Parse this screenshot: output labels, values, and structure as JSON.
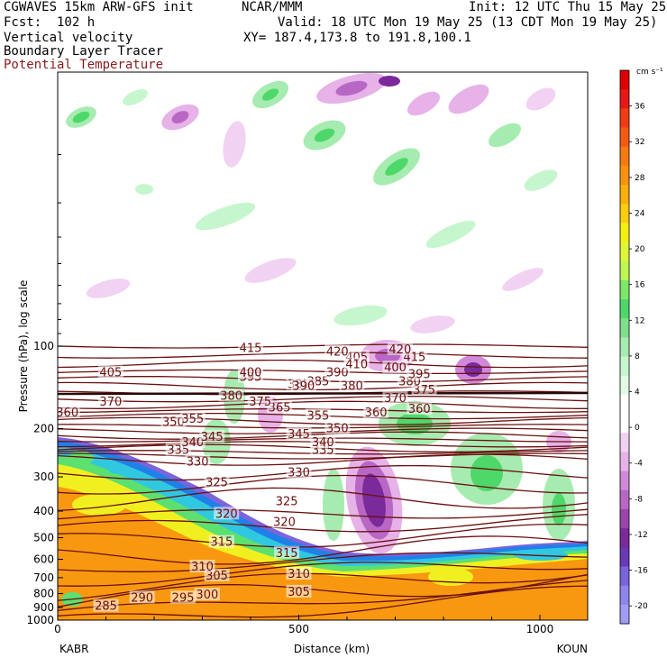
{
  "header": {
    "model": "CGWAVES 15km ARW-GFS init",
    "forecast": "Fcst:  102 h",
    "org": "NCAR/MMM",
    "init": "Init: 12 UTC Thu 15 May 25",
    "valid": "Valid: 18 UTC Mon 19 May 25 (13 CDT Mon 19 May 25)",
    "xy": "XY= 187.4,173.8 to 191.8,100.1",
    "field1": "Vertical velocity",
    "field2": "Boundary Layer Tracer",
    "field3": "Potential Temperature"
  },
  "colors": {
    "theta_line": "#6b1010",
    "field3_text": "#8b1a1a"
  },
  "chart_data": {
    "type": "heatmap",
    "title": "",
    "xlabel": "Distance (km)",
    "ylabel": "Pressure (hPa), log scale",
    "x_ticks": [
      "0",
      "500",
      "1000"
    ],
    "x_tick_values": [
      0,
      500,
      1000
    ],
    "xlim": [
      0,
      1100
    ],
    "x_endpoints": {
      "left": "KABR",
      "right": "KOUN"
    },
    "y_ticks": [
      "100",
      "200",
      "300",
      "400",
      "500",
      "600",
      "700",
      "800",
      "900",
      "1000"
    ],
    "y_tick_values": [
      100,
      200,
      300,
      400,
      500,
      600,
      700,
      800,
      900,
      1000
    ],
    "y_scale": "log",
    "colorbar": {
      "units": "cm s⁻¹",
      "labels": [
        "36",
        "32",
        "28",
        "24",
        "20",
        "16",
        "12",
        "8",
        "4",
        "0",
        "-4",
        "-8",
        "-12",
        "-16",
        "-20"
      ],
      "label_values": [
        36,
        32,
        28,
        24,
        20,
        16,
        12,
        8,
        4,
        0,
        -4,
        -8,
        -12,
        -16,
        -20
      ],
      "bands": [
        "#e00000",
        "#e81818",
        "#f03c14",
        "#f55a14",
        "#f77a10",
        "#f9920e",
        "#fbae0c",
        "#fccc10",
        "#f5ef10",
        "#e0f53a",
        "#bff552",
        "#7be86a",
        "#4fd86a",
        "#7ee08c",
        "#a6ecb0",
        "#c6f6ce",
        "#e2fbe6",
        "#ffffff",
        "#ffffff",
        "#f2d2f2",
        "#e6b2e8",
        "#d288d8",
        "#b868c4",
        "#9a44ac",
        "#7a2a9a",
        "#6a3ab4",
        "#7a64dc",
        "#8e84ec",
        "#a09cf4"
      ]
    },
    "theta_contours": [
      {
        "label": "285",
        "p": 890
      },
      {
        "label": "290",
        "p": 830
      },
      {
        "label": "295",
        "p": 830
      },
      {
        "label": "300",
        "p": 810
      },
      {
        "label": "305",
        "p": 690
      },
      {
        "label": "305",
        "p": 790
      },
      {
        "label": "310",
        "p": 640
      },
      {
        "label": "310",
        "p": 680
      },
      {
        "label": "315",
        "p": 520
      },
      {
        "label": "315",
        "p": 570
      },
      {
        "label": "320",
        "p": 410
      },
      {
        "label": "320",
        "p": 440
      },
      {
        "label": "325",
        "p": 315
      },
      {
        "label": "325",
        "p": 370
      },
      {
        "label": "330",
        "p": 265
      },
      {
        "label": "330",
        "p": 290
      },
      {
        "label": "335",
        "p": 240
      },
      {
        "label": "335",
        "p": 240
      },
      {
        "label": "340",
        "p": 225
      },
      {
        "label": "340",
        "p": 225
      },
      {
        "label": "345",
        "p": 215
      },
      {
        "label": "345",
        "p": 210
      },
      {
        "label": "350",
        "p": 200
      },
      {
        "label": "350",
        "p": 190
      },
      {
        "label": "355",
        "p": 185
      },
      {
        "label": "355",
        "p": 180
      },
      {
        "label": "360",
        "p": 175
      },
      {
        "label": "360",
        "p": 175
      },
      {
        "label": "360",
        "p": 170
      },
      {
        "label": "365",
        "p": 168
      },
      {
        "label": "370",
        "p": 160
      },
      {
        "label": "370",
        "p": 155
      },
      {
        "label": "375",
        "p": 160
      },
      {
        "label": "375",
        "p": 145
      },
      {
        "label": "380",
        "p": 152
      },
      {
        "label": "380",
        "p": 135
      },
      {
        "label": "380",
        "p": 140
      },
      {
        "label": "385",
        "p": 138
      },
      {
        "label": "385",
        "p": 135
      },
      {
        "label": "390",
        "p": 140
      },
      {
        "label": "390",
        "p": 125
      },
      {
        "label": "395",
        "p": 130
      },
      {
        "label": "395",
        "p": 127
      },
      {
        "label": "400",
        "p": 125
      },
      {
        "label": "400",
        "p": 120
      },
      {
        "label": "405",
        "p": 125
      },
      {
        "label": "405",
        "p": 110
      },
      {
        "label": "410",
        "p": 117
      },
      {
        "label": "415",
        "p": 110
      },
      {
        "label": "415",
        "p": 102
      },
      {
        "label": "420",
        "p": 105
      },
      {
        "label": "420",
        "p": 103
      }
    ]
  }
}
